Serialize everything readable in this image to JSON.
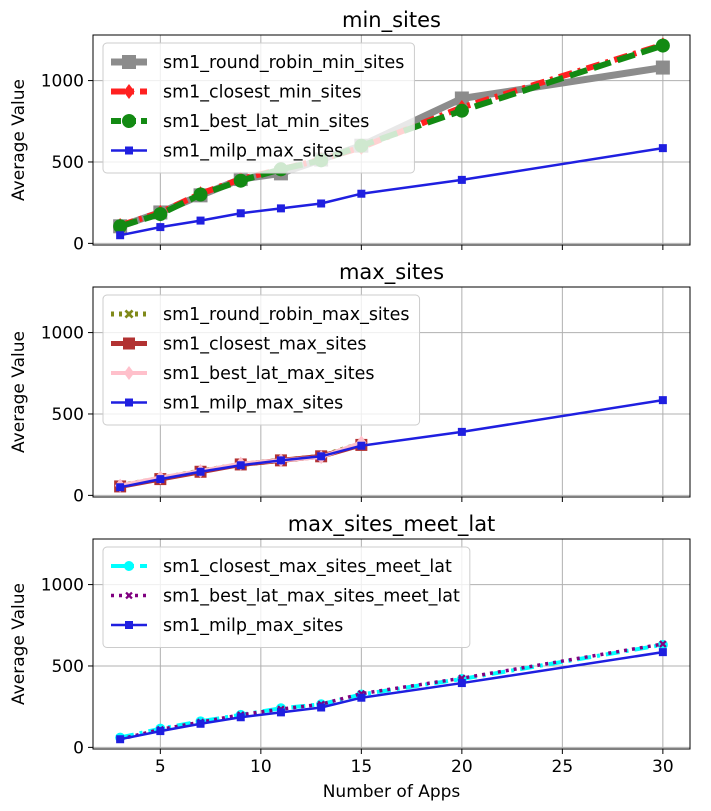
{
  "chart_data": [
    {
      "type": "line",
      "title": "min_sites",
      "ylabel": "Average Value",
      "xlabel": "",
      "xlim": [
        1.65,
        31.35
      ],
      "ylim": [
        -10,
        1280
      ],
      "xticks": [
        5,
        10,
        15,
        20,
        25,
        30
      ],
      "yticks": [
        0,
        500,
        1000
      ],
      "grid": true,
      "legend": "top-left",
      "series": [
        {
          "name": "sm1_round_robin_min_sites",
          "color": "#8c8c8c",
          "line": "solid",
          "width": 7,
          "marker": "square",
          "msize": 14,
          "x": [
            3,
            5,
            7,
            9,
            11,
            13,
            15,
            20,
            30
          ],
          "y": [
            105,
            190,
            295,
            395,
            430,
            515,
            600,
            890,
            1080
          ]
        },
        {
          "name": "sm1_closest_min_sites",
          "color": "#ff2020",
          "line": "dashdot",
          "width": 6,
          "marker": "diamond",
          "msize": 15,
          "x": [
            3,
            5,
            7,
            9,
            11,
            13,
            15,
            20,
            30
          ],
          "y": [
            110,
            190,
            305,
            395,
            455,
            515,
            590,
            835,
            1220
          ]
        },
        {
          "name": "sm1_best_lat_min_sites",
          "color": "#138a13",
          "line": "dashed",
          "width": 6,
          "marker": "circle",
          "msize": 14,
          "x": [
            3,
            5,
            7,
            9,
            11,
            13,
            15,
            20,
            30
          ],
          "y": [
            105,
            180,
            300,
            385,
            455,
            510,
            600,
            815,
            1215
          ]
        },
        {
          "name": "sm1_milp_max_sites",
          "color": "#1f1fe0",
          "line": "solid",
          "width": 2.5,
          "marker": "square",
          "msize": 8,
          "x": [
            3,
            5,
            7,
            9,
            11,
            13,
            15,
            20,
            30
          ],
          "y": [
            50,
            100,
            140,
            185,
            215,
            245,
            305,
            390,
            585
          ]
        }
      ]
    },
    {
      "type": "line",
      "title": "max_sites",
      "ylabel": "Average Value",
      "xlabel": "",
      "xlim": [
        1.65,
        31.35
      ],
      "ylim": [
        -10,
        1280
      ],
      "xticks": [
        5,
        10,
        15,
        20,
        25,
        30
      ],
      "yticks": [
        0,
        500,
        1000
      ],
      "grid": true,
      "legend": "top-left",
      "series": [
        {
          "name": "sm1_round_robin_max_sites",
          "color": "#808a1a",
          "line": "dotted",
          "width": 5,
          "marker": "x",
          "msize": 12,
          "x": [
            3,
            5,
            7,
            9,
            11,
            13,
            15
          ],
          "y": [
            60,
            105,
            150,
            190,
            215,
            240,
            320
          ]
        },
        {
          "name": "sm1_closest_max_sites",
          "color": "#b23232",
          "line": "solid",
          "width": 5,
          "marker": "square",
          "msize": 12,
          "x": [
            3,
            5,
            7,
            9,
            11,
            13,
            15
          ],
          "y": [
            55,
            100,
            145,
            190,
            215,
            240,
            310
          ]
        },
        {
          "name": "sm1_best_lat_max_sites",
          "color": "#ffc0cb",
          "line": "solid",
          "width": 4,
          "marker": "diamond",
          "msize": 14,
          "x": [
            3,
            5,
            7,
            9,
            11,
            13,
            15
          ],
          "y": [
            60,
            110,
            150,
            195,
            215,
            235,
            325
          ]
        },
        {
          "name": "sm1_milp_max_sites",
          "color": "#1f1fe0",
          "line": "solid",
          "width": 2.5,
          "marker": "square",
          "msize": 8,
          "x": [
            3,
            5,
            7,
            9,
            11,
            13,
            15,
            20,
            30
          ],
          "y": [
            50,
            100,
            145,
            185,
            215,
            240,
            305,
            390,
            585
          ]
        }
      ]
    },
    {
      "type": "line",
      "title": "max_sites_meet_lat",
      "ylabel": "Average Value",
      "xlabel": "Number of Apps",
      "xlim": [
        1.65,
        31.35
      ],
      "ylim": [
        -10,
        1280
      ],
      "xticks": [
        5,
        10,
        15,
        20,
        25,
        30
      ],
      "yticks": [
        0,
        500,
        1000
      ],
      "grid": true,
      "legend": "top-left",
      "series": [
        {
          "name": "sm1_closest_max_sites_meet_lat",
          "color": "#00ffff",
          "line": "dashdot",
          "width": 4,
          "marker": "circle",
          "msize": 10,
          "x": [
            3,
            5,
            7,
            9,
            11,
            13,
            15,
            20,
            30
          ],
          "y": [
            60,
            115,
            160,
            200,
            240,
            265,
            325,
            420,
            630
          ]
        },
        {
          "name": "sm1_best_lat_max_sites_meet_lat",
          "color": "#800080",
          "line": "dotted",
          "width": 3.5,
          "marker": "x",
          "msize": 10,
          "x": [
            3,
            5,
            7,
            9,
            11,
            13,
            15,
            20,
            30
          ],
          "y": [
            50,
            110,
            155,
            200,
            235,
            265,
            330,
            425,
            635
          ]
        },
        {
          "name": "sm1_milp_max_sites",
          "color": "#1f1fe0",
          "line": "solid",
          "width": 2.5,
          "marker": "square",
          "msize": 8,
          "x": [
            3,
            5,
            7,
            9,
            11,
            13,
            15,
            20,
            30
          ],
          "y": [
            50,
            100,
            145,
            185,
            215,
            245,
            305,
            395,
            585
          ]
        }
      ]
    }
  ]
}
